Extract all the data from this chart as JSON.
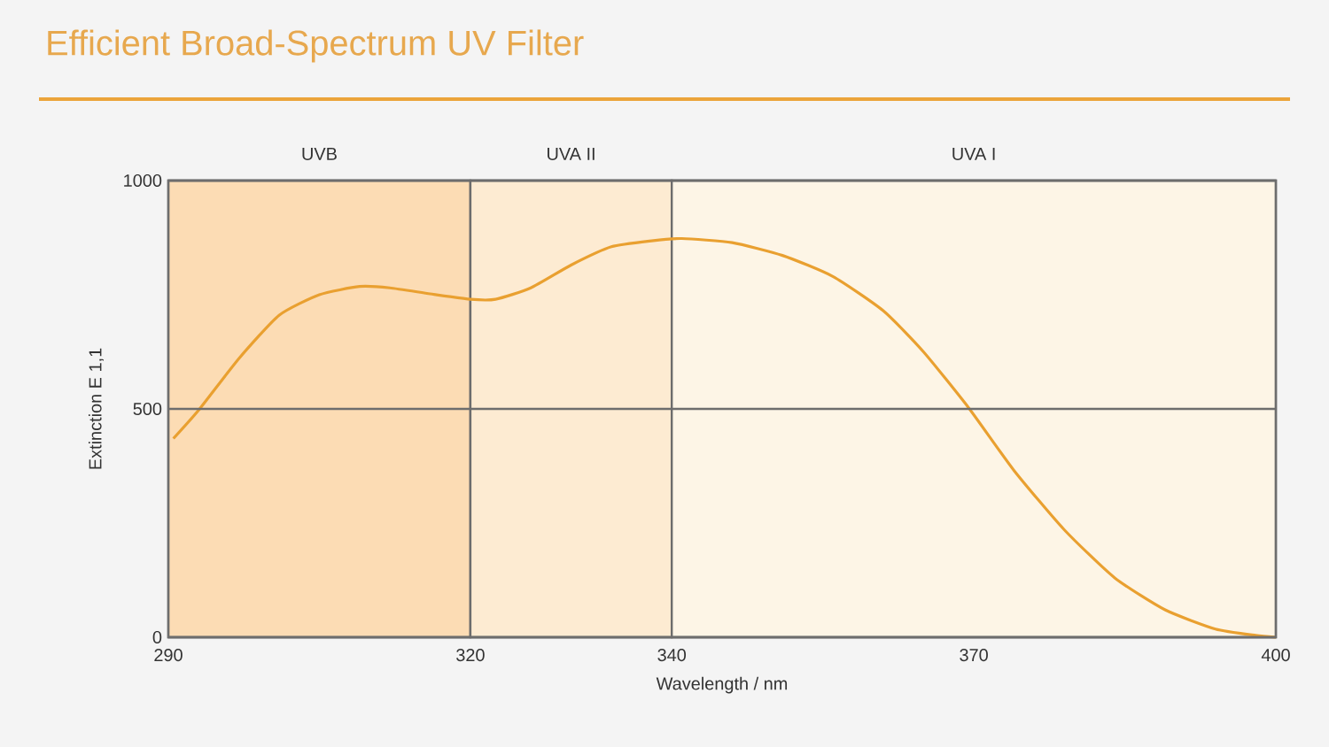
{
  "chart_data": {
    "type": "line",
    "title": "Efficient Broad-Spectrum UV Filter",
    "xlabel": "Wavelength / nm",
    "ylabel": "Extinction E 1,1",
    "x": [
      290.5,
      293,
      297,
      301,
      305,
      309,
      312,
      316,
      320,
      322.5,
      326,
      330,
      334,
      338,
      341,
      346,
      351,
      356,
      361,
      365,
      369.5,
      374,
      379,
      384,
      389,
      394,
      398,
      400
    ],
    "series": [
      {
        "color": "#e9a030",
        "values": [
          435,
          497,
          610,
          705,
          750,
          768,
          765,
          752,
          740,
          740,
          765,
          815,
          855,
          868,
          873,
          864,
          836,
          790,
          715,
          625,
          502,
          365,
          235,
          130,
          60,
          18,
          4,
          0
        ]
      }
    ],
    "xlim": [
      290,
      400
    ],
    "ylim": [
      0,
      1000
    ],
    "xticks": [
      290,
      320,
      340,
      370,
      400
    ],
    "yticks": [
      0,
      500,
      1000
    ],
    "grid": "y",
    "bands": [
      {
        "axis": "x",
        "from": 290,
        "to": 320,
        "label": "UVB",
        "color": "#fcdcb4"
      },
      {
        "axis": "x",
        "from": 320,
        "to": 340,
        "label": "UVA II",
        "color": "#fdebd2"
      },
      {
        "axis": "x",
        "from": 340,
        "to": 400,
        "label": "UVA I",
        "color": "#fdf5e6"
      }
    ]
  }
}
